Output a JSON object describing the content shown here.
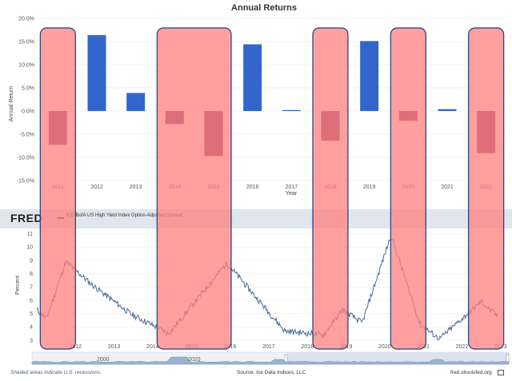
{
  "chart_data": [
    {
      "type": "bar",
      "title": "Annual Returns",
      "xlabel": "Year",
      "ylabel": "Annual Return",
      "categories": [
        "2011",
        "2012",
        "2013",
        "2014",
        "2015",
        "2016",
        "2017",
        "2018",
        "2019",
        "2020",
        "2021",
        "2022"
      ],
      "values": [
        -7.3,
        16.4,
        3.9,
        -2.8,
        -9.7,
        14.4,
        0.2,
        -6.4,
        15.1,
        -2.1,
        0.4,
        -9.1
      ],
      "yticks": [
        "20.0%",
        "15.0%",
        "10.0%",
        "5.0%",
        "0.0%",
        "-5.0%",
        "-10.0%",
        "-15.0%"
      ],
      "ylim": [
        -15,
        20
      ],
      "grid": true,
      "colors": {
        "positive": "#3366cc",
        "negative": "#7b3b6e"
      }
    },
    {
      "type": "line",
      "source_logo": "FRED",
      "series": [
        {
          "name": "ICE BofA US High Yield Index Option-Adjusted Spread",
          "color": "#4a6a9a"
        }
      ],
      "ylabel": "Percent",
      "yticks": [
        "11",
        "10",
        "9",
        "8",
        "7",
        "6",
        "5",
        "4",
        "3"
      ],
      "ylim": [
        3,
        11.4
      ],
      "xticks": [
        "2012",
        "2013",
        "2014",
        "2015",
        "2016",
        "2017",
        "2018",
        "2019",
        "2020",
        "2021",
        "2022",
        "2023"
      ],
      "key_points": [
        {
          "x": "2011-01",
          "y": 5.3
        },
        {
          "x": "2011-04",
          "y": 4.6
        },
        {
          "x": "2011-10",
          "y": 8.9
        },
        {
          "x": "2012-06",
          "y": 7.2
        },
        {
          "x": "2013-06",
          "y": 5.0
        },
        {
          "x": "2014-06",
          "y": 3.5
        },
        {
          "x": "2015-12",
          "y": 8.8
        },
        {
          "x": "2017-06",
          "y": 3.7
        },
        {
          "x": "2018-06",
          "y": 3.4
        },
        {
          "x": "2018-12",
          "y": 5.3
        },
        {
          "x": "2019-06",
          "y": 4.3
        },
        {
          "x": "2020-03",
          "y": 10.9
        },
        {
          "x": "2020-12",
          "y": 4.2
        },
        {
          "x": "2021-06",
          "y": 3.1
        },
        {
          "x": "2022-07",
          "y": 5.9
        },
        {
          "x": "2022-12",
          "y": 4.8
        }
      ],
      "navigator_labels": [
        "2000",
        "2020"
      ],
      "shaded_note": "Shaded areas indicate U.S. recessions.",
      "source": "Source: Ice Data Indices, LLC",
      "site": "fred.stlouisfed.org"
    }
  ],
  "highlight_years": [
    "2011",
    "2014",
    "2015",
    "2018",
    "2020",
    "2022"
  ],
  "colors": {
    "highlight_fill": "#ff7f7f",
    "highlight_stroke": "#1e3f80",
    "fred_header": "#dfe6ee",
    "line": "#4a6a9a"
  }
}
